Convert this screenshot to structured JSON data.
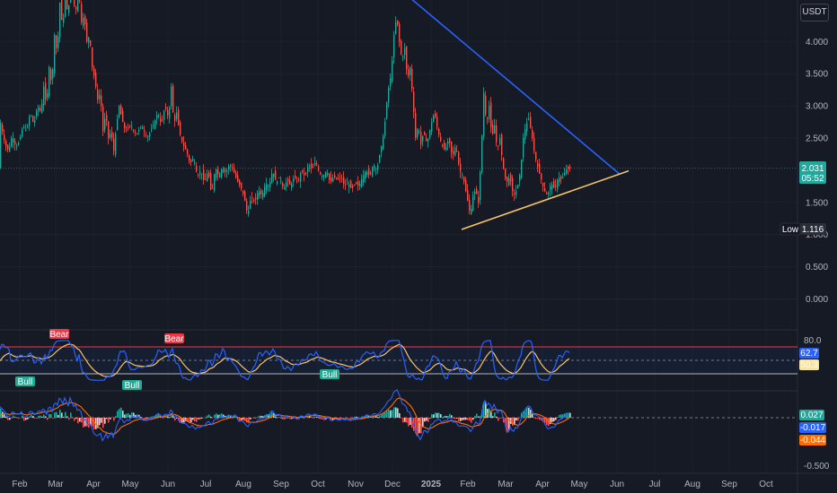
{
  "currency_button": "USDT",
  "colors": {
    "background": "#161a25",
    "up": "#26a69a",
    "down": "#ef5350",
    "trendline_upper": "#2962ff",
    "trendline_lower": "#f7c26b",
    "rsi_line": "#2962ff",
    "rsi_ma": "#f7c26b",
    "macd_line": "#2962ff",
    "signal_line": "#ff6d00"
  },
  "price_axis": {
    "ticks": [
      "4.000",
      "3.500",
      "3.000",
      "2.500",
      "1.500",
      "1.000",
      "0.500",
      "0.000"
    ],
    "tick_values": [
      4.0,
      3.5,
      3.0,
      2.5,
      1.5,
      1.0,
      0.5,
      0.0
    ],
    "current_price": "2.031",
    "countdown": "05:52",
    "low_label": "Low",
    "low_value": "1.116"
  },
  "time_axis": {
    "labels": [
      "Feb",
      "Mar",
      "Apr",
      "May",
      "Jun",
      "Jul",
      "Aug",
      "Sep",
      "Oct",
      "Nov",
      "Dec",
      "2025",
      "Feb",
      "Mar",
      "Apr",
      "May",
      "Jun",
      "Jul",
      "Aug",
      "Sep",
      "Oct"
    ],
    "bold_label": "2025"
  },
  "rsi_panel": {
    "upper_level": "80.0",
    "rsi_value": "62.7",
    "ma_value": "50.3",
    "signals": [
      {
        "text": "Bear",
        "type": "bear",
        "month": "Mar"
      },
      {
        "text": "Bull",
        "type": "bull",
        "month": "Feb"
      },
      {
        "text": "Bull",
        "type": "bull",
        "month": "May"
      },
      {
        "text": "Bear",
        "type": "bear",
        "month": "Jun"
      },
      {
        "text": "Bull",
        "type": "bull",
        "month": "Oct"
      }
    ]
  },
  "macd_panel": {
    "histogram_value": "0.027",
    "macd_value": "-0.017",
    "signal_value": "-0.044",
    "axis_label": "-0.500"
  },
  "chart_data": {
    "type": "candlestick",
    "price_path": [
      [
        0,
        2.8
      ],
      [
        6,
        2.4
      ],
      [
        10,
        2.3
      ],
      [
        14,
        2.55
      ],
      [
        18,
        2.35
      ],
      [
        22,
        2.45
      ],
      [
        26,
        2.7
      ],
      [
        30,
        2.6
      ],
      [
        34,
        2.9
      ],
      [
        38,
        2.7
      ],
      [
        42,
        3.0
      ],
      [
        46,
        2.9
      ],
      [
        49,
        3.3
      ],
      [
        52,
        3.0
      ],
      [
        55,
        3.6
      ],
      [
        58,
        3.3
      ],
      [
        61,
        4.1
      ],
      [
        64,
        3.8
      ],
      [
        67,
        4.6
      ],
      [
        70,
        4.2
      ],
      [
        73,
        4.7
      ],
      [
        76,
        4.4
      ],
      [
        79,
        4.9
      ],
      [
        82,
        4.6
      ],
      [
        85,
        4.5
      ],
      [
        88,
        4.8
      ],
      [
        91,
        4.3
      ],
      [
        94,
        4.4
      ],
      [
        97,
        4.0
      ],
      [
        100,
        4.1
      ],
      [
        103,
        3.6
      ],
      [
        106,
        3.4
      ],
      [
        109,
        3.1
      ],
      [
        112,
        3.2
      ],
      [
        115,
        2.6
      ],
      [
        118,
        2.9
      ],
      [
        121,
        2.5
      ],
      [
        124,
        2.6
      ],
      [
        127,
        2.3
      ],
      [
        130,
        2.7
      ],
      [
        133,
        3.0
      ],
      [
        136,
        2.8
      ],
      [
        140,
        2.6
      ],
      [
        146,
        2.7
      ],
      [
        152,
        2.55
      ],
      [
        158,
        2.7
      ],
      [
        164,
        2.5
      ],
      [
        170,
        2.65
      ],
      [
        176,
        2.9
      ],
      [
        180,
        2.7
      ],
      [
        184,
        3.0
      ],
      [
        188,
        2.8
      ],
      [
        191,
        3.3
      ],
      [
        194,
        2.7
      ],
      [
        197,
        2.9
      ],
      [
        200,
        2.6
      ],
      [
        204,
        2.4
      ],
      [
        208,
        2.3
      ],
      [
        212,
        2.1
      ],
      [
        216,
        2.2
      ],
      [
        220,
        1.9
      ],
      [
        224,
        2.0
      ],
      [
        228,
        1.8
      ],
      [
        232,
        2.0
      ],
      [
        236,
        1.6
      ],
      [
        240,
        2.05
      ],
      [
        244,
        1.9
      ],
      [
        248,
        2.05
      ],
      [
        252,
        1.95
      ],
      [
        256,
        2.1
      ],
      [
        260,
        2.0
      ],
      [
        264,
        1.85
      ],
      [
        268,
        1.75
      ],
      [
        272,
        1.6
      ],
      [
        276,
        1.3
      ],
      [
        280,
        1.6
      ],
      [
        284,
        1.5
      ],
      [
        288,
        1.7
      ],
      [
        292,
        1.6
      ],
      [
        296,
        1.8
      ],
      [
        300,
        1.75
      ],
      [
        304,
        2.0
      ],
      [
        308,
        1.8
      ],
      [
        312,
        1.9
      ],
      [
        316,
        1.7
      ],
      [
        320,
        1.85
      ],
      [
        324,
        1.75
      ],
      [
        328,
        1.9
      ],
      [
        332,
        1.8
      ],
      [
        336,
        2.0
      ],
      [
        340,
        1.9
      ],
      [
        344,
        2.1
      ],
      [
        348,
        2.0
      ],
      [
        352,
        2.15
      ],
      [
        356,
        1.95
      ],
      [
        360,
        1.9
      ],
      [
        364,
        2.0
      ],
      [
        368,
        1.8
      ],
      [
        372,
        1.9
      ],
      [
        376,
        1.85
      ],
      [
        380,
        1.9
      ],
      [
        384,
        1.75
      ],
      [
        388,
        1.8
      ],
      [
        392,
        1.7
      ],
      [
        396,
        1.8
      ],
      [
        400,
        1.75
      ],
      [
        404,
        1.9
      ],
      [
        408,
        2.0
      ],
      [
        412,
        1.9
      ],
      [
        416,
        2.1
      ],
      [
        420,
        2.0
      ],
      [
        424,
        2.3
      ],
      [
        428,
        2.6
      ],
      [
        432,
        3.2
      ],
      [
        436,
        3.5
      ],
      [
        439,
        4.1
      ],
      [
        442,
        4.4
      ],
      [
        445,
        4.0
      ],
      [
        448,
        3.7
      ],
      [
        451,
        3.9
      ],
      [
        454,
        3.4
      ],
      [
        457,
        3.6
      ],
      [
        460,
        3.1
      ],
      [
        463,
        2.5
      ],
      [
        466,
        2.7
      ],
      [
        469,
        2.4
      ],
      [
        472,
        2.6
      ],
      [
        476,
        2.4
      ],
      [
        480,
        2.7
      ],
      [
        484,
        2.9
      ],
      [
        488,
        2.6
      ],
      [
        492,
        2.4
      ],
      [
        496,
        2.3
      ],
      [
        500,
        2.5
      ],
      [
        504,
        2.2
      ],
      [
        508,
        2.4
      ],
      [
        512,
        2.0
      ],
      [
        516,
        1.9
      ],
      [
        520,
        1.6
      ],
      [
        524,
        1.3
      ],
      [
        527,
        1.6
      ],
      [
        530,
        1.7
      ],
      [
        533,
        1.5
      ],
      [
        536,
        2.2
      ],
      [
        539,
        3.2
      ],
      [
        542,
        2.7
      ],
      [
        545,
        3.0
      ],
      [
        548,
        2.5
      ],
      [
        551,
        2.7
      ],
      [
        554,
        2.3
      ],
      [
        557,
        2.5
      ],
      [
        560,
        2.1
      ],
      [
        564,
        1.8
      ],
      [
        568,
        1.9
      ],
      [
        572,
        1.6
      ],
      [
        576,
        1.7
      ],
      [
        580,
        2.0
      ],
      [
        583,
        2.5
      ],
      [
        586,
        2.7
      ],
      [
        589,
        2.8
      ],
      [
        592,
        2.6
      ],
      [
        595,
        2.3
      ],
      [
        598,
        2.1
      ],
      [
        602,
        1.9
      ],
      [
        606,
        1.7
      ],
      [
        610,
        1.6
      ],
      [
        614,
        1.8
      ],
      [
        618,
        1.7
      ],
      [
        622,
        1.9
      ],
      [
        626,
        1.85
      ],
      [
        630,
        2.0
      ],
      [
        634,
        2.03
      ]
    ],
    "upper_trendline": [
      [
        442,
        4.85
      ],
      [
        690,
        1.94
      ]
    ],
    "lower_trendline": [
      [
        514,
        1.08
      ],
      [
        700,
        1.99
      ]
    ],
    "ylim": [
      0,
      5.0
    ]
  }
}
